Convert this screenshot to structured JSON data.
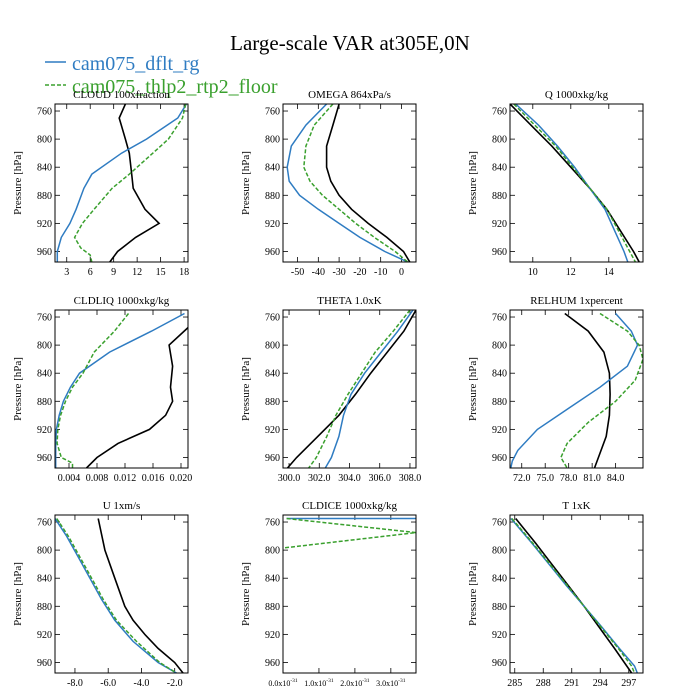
{
  "title": "Large-scale VAR at305E,0N",
  "legend": [
    {
      "label": "cam075_dflt_rg",
      "color": "#2f7cc2"
    },
    {
      "label": "cam075_thlp2_rtp2_floor",
      "color": "#3aa02e"
    }
  ],
  "colors": {
    "reference": "#000000",
    "dflt": "#2f7cc2",
    "thlp2": "#3aa02e"
  },
  "ylabel": "Pressure [hPa]",
  "yticks": [
    760,
    800,
    840,
    880,
    920,
    960
  ],
  "chart_data": [
    {
      "type": "line",
      "title": "CLOUD  100xfraction",
      "ylabel": "Pressure [hPa]",
      "xlim": [
        1.5,
        18.5
      ],
      "ylim": [
        750,
        975
      ],
      "xticks": [
        {
          "v": 3,
          "l": "3"
        },
        {
          "v": 6,
          "l": "6"
        },
        {
          "v": 9,
          "l": "9"
        },
        {
          "v": 12,
          "l": "12"
        },
        {
          "v": 15,
          "l": "15"
        },
        {
          "v": 18,
          "l": "18"
        }
      ],
      "series": [
        {
          "key": "ref",
          "color": "#000000",
          "dash": false,
          "p": [
            750,
            770,
            800,
            820,
            850,
            870,
            900,
            920,
            940,
            960,
            975
          ],
          "x": [
            10.5,
            9.7,
            10.5,
            11.0,
            11.3,
            11.5,
            13.0,
            14.8,
            11.8,
            9.5,
            8.5
          ]
        },
        {
          "key": "dflt",
          "color": "#2f7cc2",
          "dash": false,
          "p": [
            750,
            770,
            800,
            820,
            850,
            870,
            900,
            920,
            940,
            960,
            975
          ],
          "x": [
            18.3,
            17.2,
            13.2,
            10.0,
            6.2,
            5.2,
            4.2,
            3.4,
            2.3,
            1.8,
            1.8
          ]
        },
        {
          "key": "thlp2",
          "color": "#3aa02e",
          "dash": true,
          "p": [
            750,
            770,
            800,
            820,
            850,
            870,
            900,
            920,
            940,
            955,
            965,
            975
          ],
          "x": [
            18.2,
            17.8,
            16.0,
            14.0,
            11.0,
            8.8,
            6.5,
            5.0,
            4.0,
            4.8,
            6.0,
            6.2
          ]
        }
      ]
    },
    {
      "type": "line",
      "title": "OMEGA  864xPa/s",
      "ylabel": "Pressure [hPa]",
      "xlim": [
        -57,
        7
      ],
      "ylim": [
        750,
        975
      ],
      "xticks": [
        {
          "v": -50,
          "l": "-50"
        },
        {
          "v": -40,
          "l": "-40"
        },
        {
          "v": -30,
          "l": "-30"
        },
        {
          "v": -20,
          "l": "-20"
        },
        {
          "v": -10,
          "l": "-10"
        },
        {
          "v": 0,
          "l": "0"
        }
      ],
      "series": [
        {
          "key": "ref",
          "color": "#000000",
          "dash": false,
          "p": [
            750,
            780,
            810,
            840,
            860,
            880,
            900,
            920,
            940,
            960,
            975
          ],
          "x": [
            -30.0,
            -33.0,
            -36.0,
            -36.0,
            -34.0,
            -30.0,
            -24.0,
            -16.0,
            -7.0,
            1.0,
            4.0
          ]
        },
        {
          "key": "dflt",
          "color": "#2f7cc2",
          "dash": false,
          "p": [
            750,
            780,
            810,
            840,
            860,
            880,
            900,
            920,
            940,
            960,
            975
          ],
          "x": [
            -36.0,
            -46.0,
            -53.0,
            -55.0,
            -54.0,
            -49.0,
            -40.0,
            -30.0,
            -20.0,
            -8.0,
            3.0
          ]
        },
        {
          "key": "thlp2",
          "color": "#3aa02e",
          "dash": true,
          "p": [
            750,
            780,
            810,
            840,
            860,
            880,
            900,
            920,
            940,
            960,
            975
          ],
          "x": [
            -33.0,
            -42.0,
            -46.0,
            -47.0,
            -44.0,
            -38.0,
            -30.0,
            -22.0,
            -13.0,
            -3.0,
            3.0
          ]
        }
      ]
    },
    {
      "type": "line",
      "title": "Q  1000xkg/kg",
      "ylabel": "Pressure [hPa]",
      "xlim": [
        8.8,
        15.8
      ],
      "ylim": [
        750,
        975
      ],
      "xticks": [
        {
          "v": 10,
          "l": "10"
        },
        {
          "v": 12,
          "l": "12"
        },
        {
          "v": 14,
          "l": "14"
        }
      ],
      "series": [
        {
          "key": "ref",
          "color": "#000000",
          "dash": false,
          "p": [
            750,
            780,
            810,
            840,
            870,
            900,
            930,
            960,
            975
          ],
          "x": [
            8.8,
            9.9,
            11.0,
            12.0,
            13.0,
            13.9,
            14.6,
            15.3,
            15.6
          ]
        },
        {
          "key": "dflt",
          "color": "#2f7cc2",
          "dash": false,
          "p": [
            750,
            780,
            810,
            840,
            870,
            900,
            930,
            960,
            975
          ],
          "x": [
            9.1,
            10.3,
            11.3,
            12.2,
            13.0,
            13.8,
            14.3,
            14.8,
            15.0
          ]
        },
        {
          "key": "thlp2",
          "color": "#3aa02e",
          "dash": true,
          "p": [
            750,
            780,
            810,
            840,
            870,
            900,
            930,
            960,
            975
          ],
          "x": [
            9.0,
            10.1,
            11.2,
            12.1,
            13.0,
            13.9,
            14.5,
            15.1,
            15.4
          ]
        }
      ]
    },
    {
      "type": "line",
      "title": "CLDLIQ  1000xkg/kg",
      "ylabel": "Pressure [hPa]",
      "xlim": [
        0.002,
        0.021
      ],
      "ylim": [
        750,
        975
      ],
      "xticks": [
        {
          "v": 0.004,
          "l": "0.004"
        },
        {
          "v": 0.008,
          "l": "0.008"
        },
        {
          "v": 0.012,
          "l": "0.012"
        },
        {
          "v": 0.016,
          "l": "0.016"
        },
        {
          "v": 0.02,
          "l": "0.020"
        }
      ],
      "series": [
        {
          "key": "ref",
          "color": "#000000",
          "dash": false,
          "p": [
            775,
            800,
            830,
            860,
            880,
            900,
            920,
            940,
            960,
            975
          ],
          "x": [
            0.021,
            0.0183,
            0.0188,
            0.0185,
            0.0188,
            0.0178,
            0.0155,
            0.011,
            0.008,
            0.0065
          ]
        },
        {
          "key": "dflt",
          "color": "#2f7cc2",
          "dash": false,
          "p": [
            755,
            780,
            810,
            840,
            860,
            880,
            900,
            920,
            940,
            960,
            975
          ],
          "x": [
            0.0205,
            0.0158,
            0.0098,
            0.0055,
            0.0042,
            0.0032,
            0.0026,
            0.0022,
            0.0021,
            0.0021,
            0.0021
          ]
        },
        {
          "key": "thlp2",
          "color": "#3aa02e",
          "dash": true,
          "p": [
            755,
            780,
            810,
            840,
            860,
            880,
            900,
            920,
            940,
            960,
            968,
            975
          ],
          "x": [
            0.0125,
            0.0105,
            0.0076,
            0.006,
            0.0045,
            0.0035,
            0.0028,
            0.0024,
            0.0023,
            0.0029,
            0.0045,
            0.0045
          ]
        }
      ]
    },
    {
      "type": "line",
      "title": "THETA  1.0xK",
      "ylabel": "Pressure [hPa]",
      "xlim": [
        299.6,
        308.4
      ],
      "ylim": [
        750,
        975
      ],
      "xticks": [
        {
          "v": 300,
          "l": "300.0"
        },
        {
          "v": 302,
          "l": "302.0"
        },
        {
          "v": 304,
          "l": "304.0"
        },
        {
          "v": 306,
          "l": "306.0"
        },
        {
          "v": 308,
          "l": "308.0"
        }
      ],
      "series": [
        {
          "key": "ref",
          "color": "#000000",
          "dash": false,
          "p": [
            750,
            780,
            810,
            840,
            870,
            900,
            930,
            960,
            975
          ],
          "x": [
            308.4,
            307.6,
            306.5,
            305.4,
            304.4,
            303.3,
            301.9,
            300.5,
            299.9
          ]
        },
        {
          "key": "dflt",
          "color": "#2f7cc2",
          "dash": false,
          "p": [
            750,
            780,
            810,
            840,
            870,
            900,
            930,
            960,
            975
          ],
          "x": [
            308.2,
            307.2,
            306.1,
            305.0,
            304.1,
            303.6,
            303.3,
            302.8,
            302.4
          ]
        },
        {
          "key": "thlp2",
          "color": "#3aa02e",
          "dash": true,
          "p": [
            750,
            780,
            810,
            840,
            870,
            900,
            930,
            960,
            975
          ],
          "x": [
            308.0,
            306.9,
            305.7,
            304.8,
            303.9,
            303.1,
            302.5,
            301.8,
            301.3
          ]
        }
      ]
    },
    {
      "type": "line",
      "title": "RELHUM  1xpercent",
      "ylabel": "Pressure [hPa]",
      "xlim": [
        70.5,
        87.5
      ],
      "ylim": [
        750,
        975
      ],
      "xticks": [
        {
          "v": 72,
          "l": "72.0"
        },
        {
          "v": 75,
          "l": "75.0"
        },
        {
          "v": 78,
          "l": "78.0"
        },
        {
          "v": 81,
          "l": "81.0"
        },
        {
          "v": 84,
          "l": "84.0"
        }
      ],
      "series": [
        {
          "key": "ref",
          "color": "#000000",
          "dash": false,
          "p": [
            755,
            780,
            810,
            840,
            870,
            900,
            930,
            960,
            975
          ],
          "x": [
            77.5,
            80.5,
            82.5,
            83.2,
            83.3,
            83.2,
            82.8,
            81.8,
            81.3
          ]
        },
        {
          "key": "dflt",
          "color": "#2f7cc2",
          "dash": false,
          "p": [
            755,
            780,
            800,
            830,
            860,
            890,
            920,
            950,
            965,
            975
          ],
          "x": [
            84.0,
            86.0,
            86.8,
            85.5,
            82.0,
            78.0,
            74.0,
            71.5,
            70.8,
            70.6
          ]
        },
        {
          "key": "thlp2",
          "color": "#3aa02e",
          "dash": true,
          "p": [
            755,
            780,
            800,
            820,
            850,
            880,
            910,
            940,
            960,
            975
          ],
          "x": [
            82.0,
            85.5,
            87.0,
            87.5,
            86.5,
            84.0,
            80.5,
            77.8,
            77.0,
            77.8
          ]
        }
      ]
    },
    {
      "type": "line",
      "title": "U  1xm/s",
      "ylabel": "Pressure [hPa]",
      "xlim": [
        -9.2,
        -1.2
      ],
      "ylim": [
        750,
        975
      ],
      "xticks": [
        {
          "v": -8,
          "l": "-8.0"
        },
        {
          "v": -6,
          "l": "-6.0"
        },
        {
          "v": -4,
          "l": "-4.0"
        },
        {
          "v": -2,
          "l": "-2.0"
        }
      ],
      "series": [
        {
          "key": "ref",
          "color": "#000000",
          "dash": false,
          "p": [
            755,
            800,
            840,
            880,
            900,
            920,
            940,
            960,
            975
          ],
          "x": [
            -6.6,
            -6.2,
            -5.6,
            -5.0,
            -4.5,
            -3.8,
            -3.0,
            -2.0,
            -1.5
          ]
        },
        {
          "key": "dflt",
          "color": "#2f7cc2",
          "dash": false,
          "p": [
            755,
            780,
            810,
            840,
            870,
            900,
            930,
            960,
            975
          ],
          "x": [
            -9.2,
            -8.5,
            -7.8,
            -7.1,
            -6.4,
            -5.6,
            -4.5,
            -3.0,
            -1.9
          ]
        },
        {
          "key": "thlp2",
          "color": "#3aa02e",
          "dash": true,
          "p": [
            755,
            780,
            810,
            840,
            870,
            900,
            930,
            960,
            975
          ],
          "x": [
            -9.1,
            -8.4,
            -7.7,
            -7.0,
            -6.3,
            -5.5,
            -4.3,
            -2.9,
            -1.9
          ]
        }
      ]
    },
    {
      "type": "line",
      "title": "CLDICE  1000xkg/kg",
      "ylabel": "Pressure [hPa]",
      "xlim": [
        0,
        3.7e-31
      ],
      "ylim": [
        750,
        975
      ],
      "xticks": [
        {
          "v": 0,
          "l": "0.0x10",
          "e": "-31"
        },
        {
          "v": 1e-31,
          "l": "1.0x10",
          "e": "-31"
        },
        {
          "v": 2e-31,
          "l": "2.0x10",
          "e": "-31"
        },
        {
          "v": 3e-31,
          "l": "3.0x10",
          "e": "-31"
        }
      ],
      "series": [
        {
          "key": "dflt",
          "color": "#2f7cc2",
          "dash": false,
          "p": [
            755,
            755
          ],
          "x": [
            1e-32,
            3.7e-31
          ]
        },
        {
          "key": "thlp2",
          "color": "#3aa02e",
          "dash": true,
          "p": [
            755,
            775,
            797
          ],
          "x": [
            1e-32,
            3.7e-31,
            0
          ]
        }
      ]
    },
    {
      "type": "line",
      "title": "T  1xK",
      "ylabel": "Pressure [hPa]",
      "xlim": [
        284.5,
        298.5
      ],
      "ylim": [
        750,
        975
      ],
      "xticks": [
        {
          "v": 285,
          "l": "285"
        },
        {
          "v": 288,
          "l": "288"
        },
        {
          "v": 291,
          "l": "291"
        },
        {
          "v": 294,
          "l": "294"
        },
        {
          "v": 297,
          "l": "297"
        }
      ],
      "series": [
        {
          "key": "ref",
          "color": "#000000",
          "dash": false,
          "p": [
            755,
            790,
            820,
            850,
            880,
            910,
            940,
            975
          ],
          "x": [
            285.1,
            287.2,
            288.9,
            290.6,
            292.3,
            293.9,
            295.5,
            297.3
          ]
        },
        {
          "key": "dflt",
          "color": "#2f7cc2",
          "dash": false,
          "p": [
            755,
            790,
            820,
            850,
            880,
            910,
            940,
            965,
            975
          ],
          "x": [
            284.6,
            286.8,
            288.6,
            290.4,
            292.3,
            294.2,
            296.0,
            297.6,
            297.9
          ]
        },
        {
          "key": "thlp2",
          "color": "#3aa02e",
          "dash": true,
          "p": [
            755,
            790,
            820,
            850,
            880,
            910,
            940,
            965,
            975
          ],
          "x": [
            284.7,
            286.9,
            288.7,
            290.5,
            292.3,
            294.1,
            295.9,
            297.3,
            297.6
          ]
        }
      ]
    }
  ]
}
